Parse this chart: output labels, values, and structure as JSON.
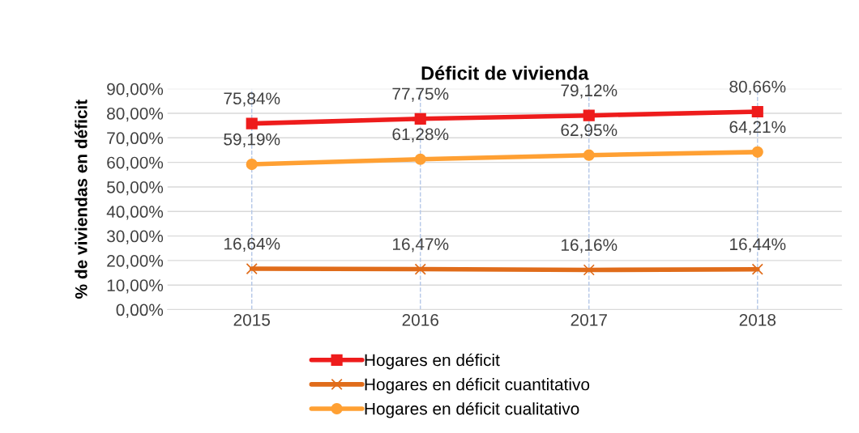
{
  "chart_data": {
    "type": "line",
    "title": "Déficit de vivienda",
    "ylabel": "% de viviendas en déficit",
    "categories": [
      "2015",
      "2016",
      "2017",
      "2018"
    ],
    "series": [
      {
        "name": "Hogares en déficit",
        "color": "#ee1c1c",
        "marker": "square",
        "values": [
          75.84,
          77.75,
          79.12,
          80.66
        ],
        "value_labels": [
          "75,84%",
          "77,75%",
          "79,12%",
          "80,66%"
        ]
      },
      {
        "name": "Hogares en déficit cuantitativo",
        "color": "#e06c1a",
        "marker": "cross",
        "values": [
          16.64,
          16.47,
          16.16,
          16.44
        ],
        "value_labels": [
          "16,64%",
          "16,47%",
          "16,16%",
          "16,44%"
        ]
      },
      {
        "name": "Hogares en déficit cualitativo",
        "color": "#ffa033",
        "marker": "circle",
        "values": [
          59.19,
          61.28,
          62.95,
          64.21
        ],
        "value_labels": [
          "59,19%",
          "61,28%",
          "62,95%",
          "64,21%"
        ]
      }
    ],
    "ylim": [
      0,
      90
    ],
    "yticks": [
      {
        "value": 0,
        "label": "0,00%"
      },
      {
        "value": 10,
        "label": "10,00%"
      },
      {
        "value": 20,
        "label": "20,00%"
      },
      {
        "value": 30,
        "label": "30,00%"
      },
      {
        "value": 40,
        "label": "40,00%"
      },
      {
        "value": 50,
        "label": "50,00%"
      },
      {
        "value": 60,
        "label": "60,00%"
      },
      {
        "value": 70,
        "label": "70,00%"
      },
      {
        "value": 80,
        "label": "80,00%"
      },
      {
        "value": 90,
        "label": "90,00%"
      }
    ],
    "ref_lines": [
      {
        "axis": "x",
        "value": "2015",
        "color": "#b4c7e7",
        "line_style": "dashed"
      },
      {
        "axis": "x",
        "value": "2016",
        "color": "#b4c7e7",
        "line_style": "dashed"
      },
      {
        "axis": "x",
        "value": "2017",
        "color": "#b4c7e7",
        "line_style": "dashed"
      },
      {
        "axis": "x",
        "value": "2018",
        "color": "#b4c7e7",
        "line_style": "dashed"
      }
    ],
    "grid": "y",
    "legend": "bottom",
    "line_style": "solid"
  }
}
